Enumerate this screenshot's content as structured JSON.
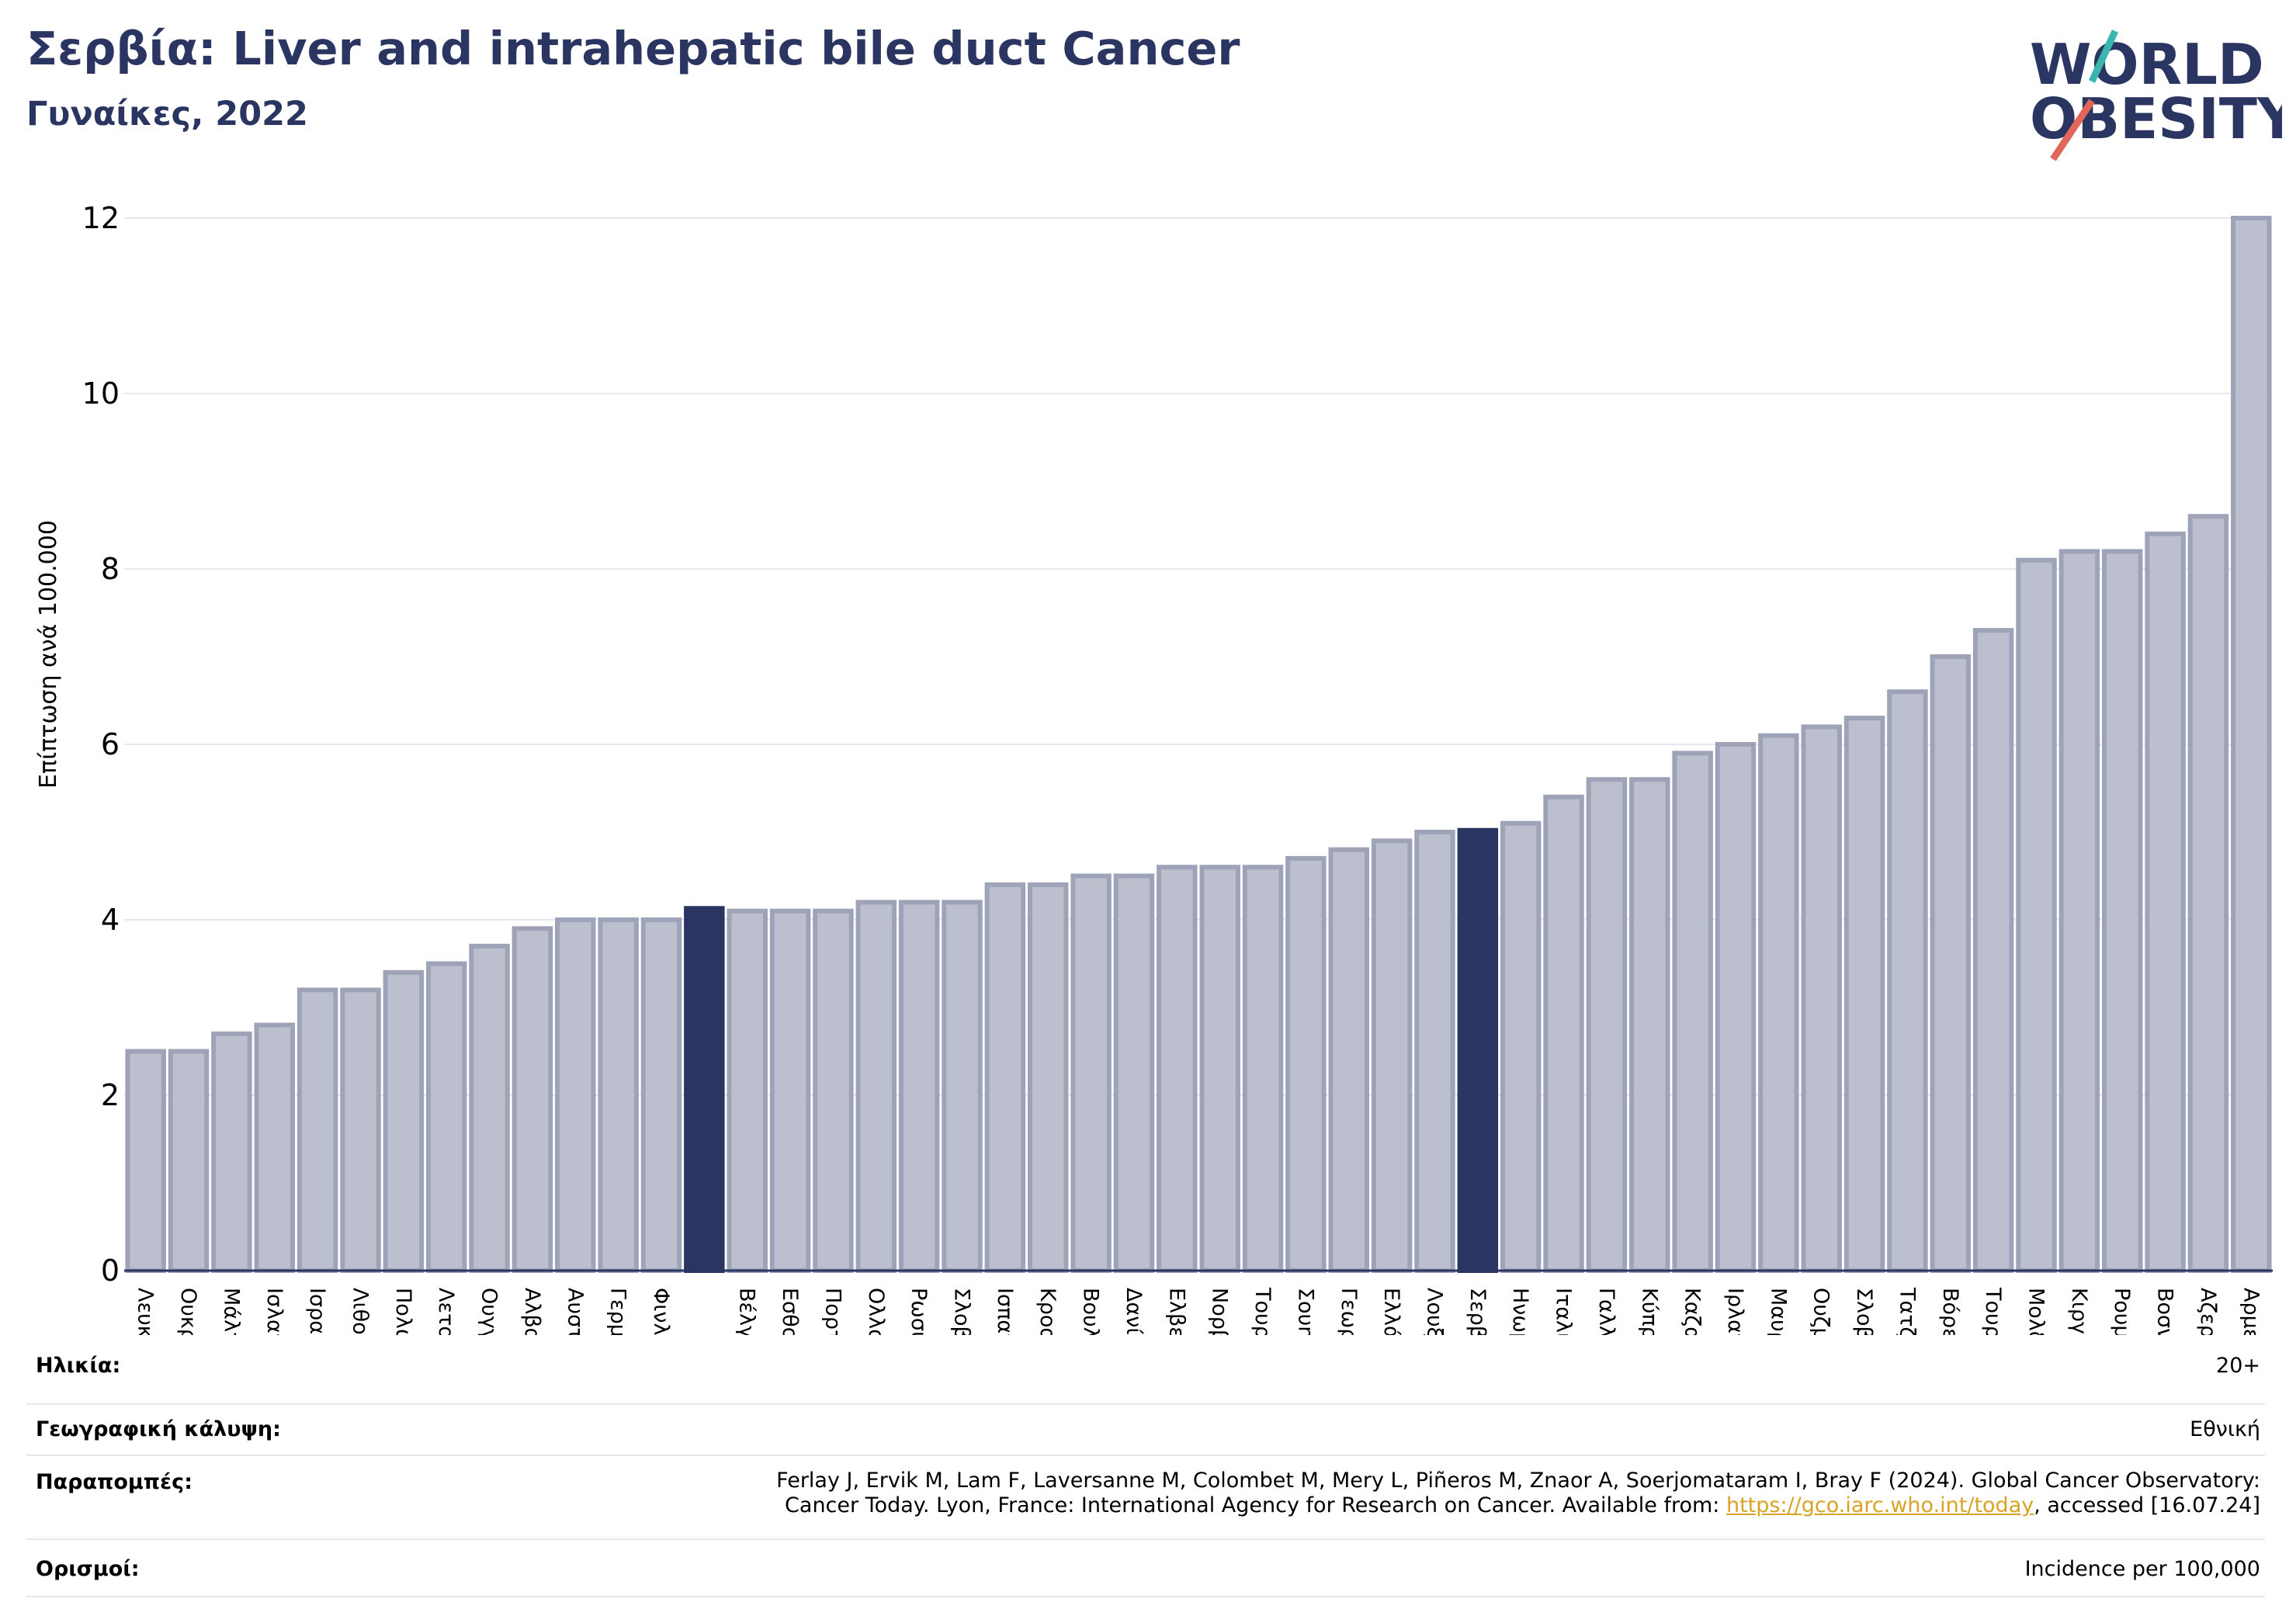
{
  "header": {
    "title": "Σερβία: Liver and intrahepatic bile duct Cancer",
    "subtitle": "Γυναίκες, 2022"
  },
  "logo": {
    "line1": "WORLD",
    "line2": "OBESITY",
    "accent1": "#3ab5b0",
    "accent2": "#e0675a",
    "text_color": "#2b3561"
  },
  "colors": {
    "bar": "#bcbfcd",
    "bar_edge": "#9ea3b8",
    "highlight": "#2b3561",
    "grid": "#e6e8ef",
    "axis": "#2b3561"
  },
  "chart_data": {
    "type": "bar",
    "ylabel": "Επίπτωση ανά 100.000",
    "ylim": [
      0,
      12
    ],
    "yticks": [
      0,
      2,
      4,
      6,
      8,
      10,
      12
    ],
    "grid": true,
    "categories": [
      "Λευκορωσία",
      "Ουκρανία",
      "Μάλτα",
      "Ισλανδία",
      "Ισραήλ",
      "Λιθουανία",
      "Πολωνία",
      "Λετονία",
      "Ουγγαρία",
      "Αλβανία",
      "Αυστρία",
      "Γερμανία",
      "Φινλανδία",
      "",
      "Βέλγιο",
      "Εσθονία",
      "Πορτογαλία",
      "Ολλανδία",
      "Ρωσική Ομοσπονδία",
      "Σλοβακία",
      "Ισπανία",
      "Κροατία",
      "Βουλγαρία",
      "Δανία",
      "Ελβετία",
      "Νορβηγία",
      "Τουρκία",
      "Σουηδία",
      "Γεωργία",
      "Ελλάδα",
      "Λουξεμβούργο",
      "Σερβία",
      "Ηνωμένο Βασίλειο",
      "Ιταλία",
      "Γαλλία",
      "Κύπρος",
      "Καζακστάν",
      "Ιρλανδία",
      "Μαυροβούνιο",
      "Ουζμπεκιστάν",
      "Σλοβενία",
      "Τατζικιστάν",
      "Βόρεια Μακεδονία",
      "Τουρκμενιστάν",
      "Μολδαβία",
      "Κιργιστάν",
      "Ρουμανία",
      "Βοσνία και Ερζεγοβίνη",
      "Αζερμπαϊτζάν",
      "Αρμενία"
    ],
    "values": [
      2.5,
      2.5,
      2.7,
      2.8,
      3.2,
      3.2,
      3.4,
      3.5,
      3.7,
      3.9,
      4.0,
      4.0,
      4.0,
      4.13,
      4.1,
      4.1,
      4.1,
      4.2,
      4.2,
      4.2,
      4.4,
      4.4,
      4.5,
      4.5,
      4.6,
      4.6,
      4.6,
      4.7,
      4.8,
      4.9,
      5.0,
      5.02,
      5.1,
      5.4,
      5.6,
      5.6,
      5.9,
      6.0,
      6.1,
      6.2,
      6.3,
      6.6,
      7.0,
      7.3,
      8.1,
      8.2,
      8.2,
      8.4,
      8.6,
      12.0
    ],
    "highlight_index": [
      13,
      31
    ]
  },
  "footer": {
    "rows": [
      {
        "label": "Ηλικία:",
        "value": "20+"
      },
      {
        "label": "Γεωγραφική κάλυψη:",
        "value": "Εθνική"
      },
      {
        "label": "Παραπομπές:",
        "line1": "Ferlay J, Ervik M, Lam F, Laversanne M, Colombet M, Mery L, Piñeros M, Znaor A, Soerjomataram I, Bray F (2024). Global Cancer Observatory:",
        "line2_pre": "Cancer Today. Lyon, France: International Agency for Research on Cancer. Available from: ",
        "link": "https://gco.iarc.who.int/today",
        "line2_post": ", accessed [16.07.24]"
      },
      {
        "label": "Ορισμοί:",
        "value": "Incidence per 100,000"
      }
    ]
  }
}
